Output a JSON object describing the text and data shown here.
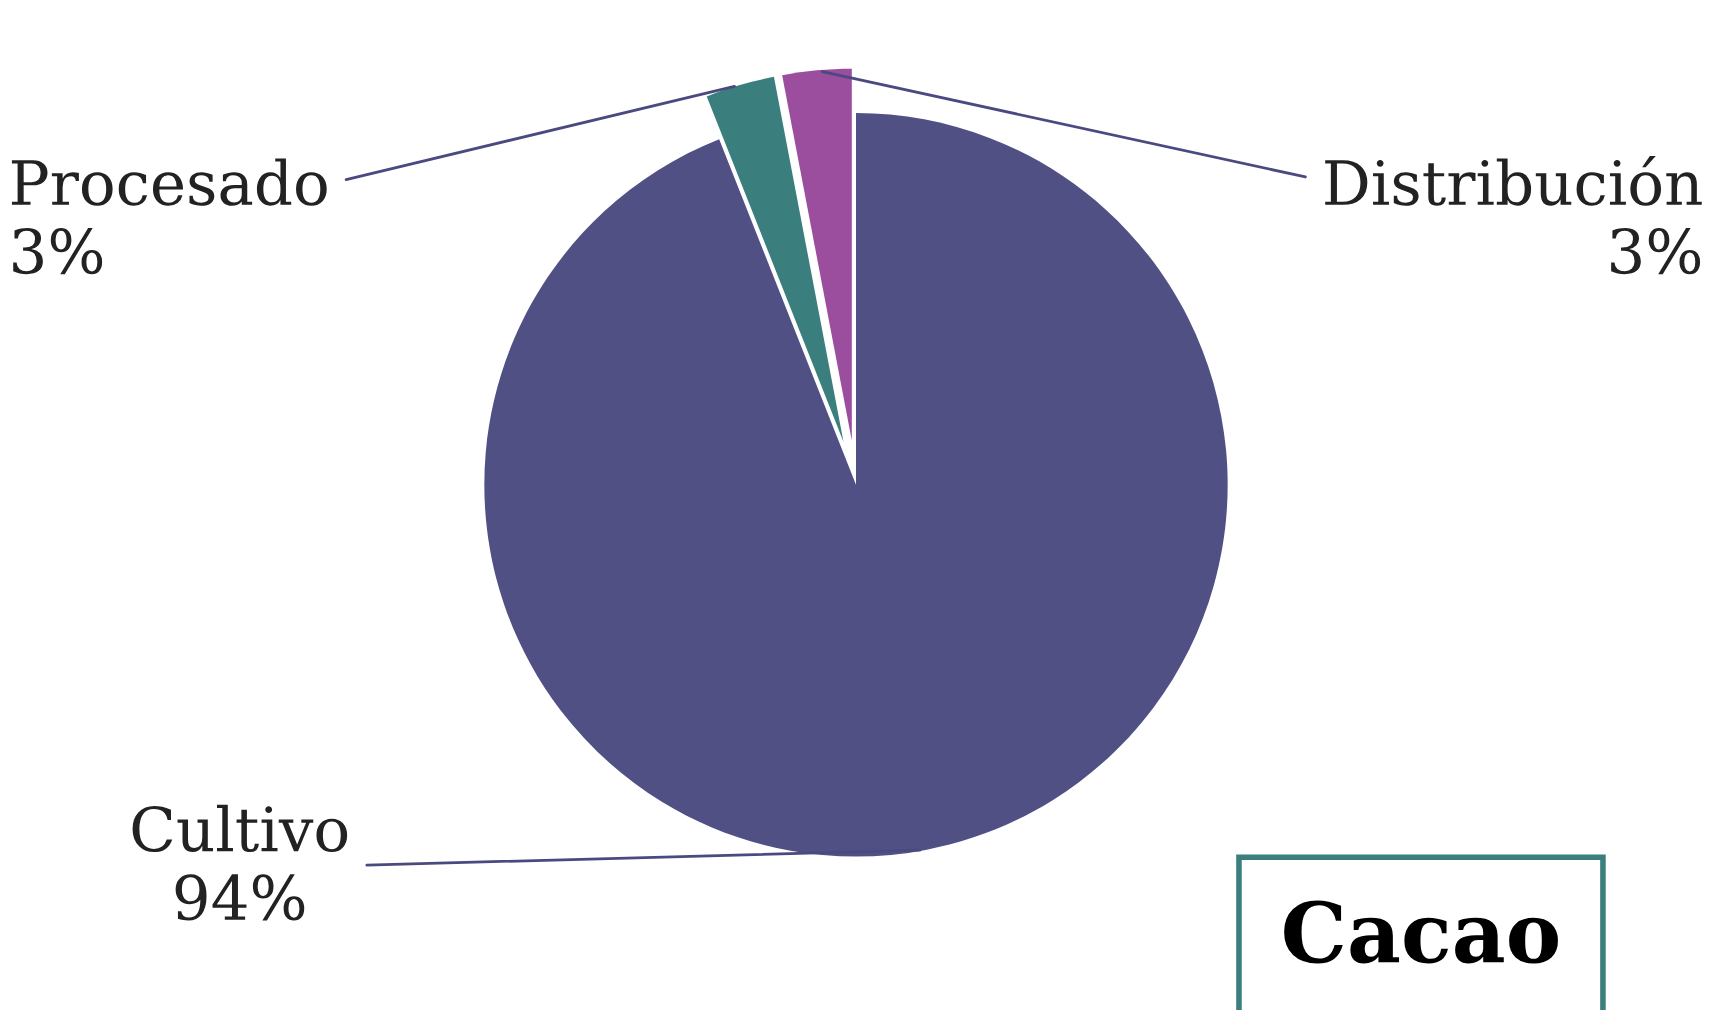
{
  "chart_data": {
    "type": "pie",
    "title": "Cacao",
    "categories": [
      "Cultivo",
      "Procesado",
      "Distribución"
    ],
    "values": [
      94,
      3,
      3
    ],
    "value_labels": [
      "94%",
      "3%",
      "3%"
    ],
    "colors": [
      "#515085",
      "#3a7f7d",
      "#9b4d9e"
    ],
    "legend": false
  }
}
